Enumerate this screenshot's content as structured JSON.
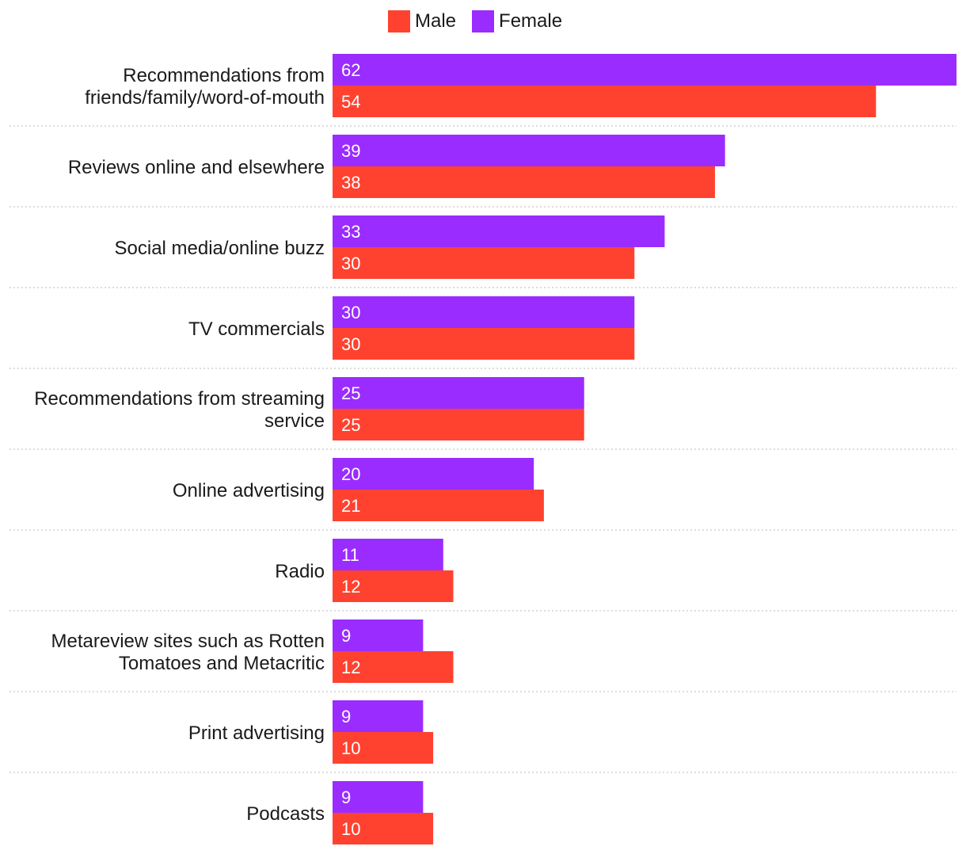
{
  "chart_data": {
    "type": "bar",
    "orientation": "horizontal",
    "categories": [
      [
        "Recommendations from",
        "friends/family/word-of-mouth"
      ],
      [
        "Reviews online and elsewhere"
      ],
      [
        "Social media/online buzz"
      ],
      [
        "TV commercials"
      ],
      [
        "Recommendations from streaming",
        "service"
      ],
      [
        "Online advertising"
      ],
      [
        "Radio"
      ],
      [
        "Metareview sites such as Rotten",
        "Tomatoes and Metacritic"
      ],
      [
        "Print advertising"
      ],
      [
        "Podcasts"
      ]
    ],
    "series": [
      {
        "name": "Female",
        "color": "#9b2cff",
        "values": [
          62,
          39,
          33,
          30,
          25,
          20,
          11,
          9,
          9,
          9
        ]
      },
      {
        "name": "Male",
        "color": "#ff4230",
        "values": [
          54,
          38,
          30,
          30,
          25,
          21,
          12,
          12,
          10,
          10
        ]
      }
    ],
    "xlim": [
      0,
      62
    ],
    "legend": {
      "position": "top-center",
      "items": [
        {
          "name": "Male",
          "color": "#ff4230"
        },
        {
          "name": "Female",
          "color": "#9b2cff"
        }
      ]
    },
    "separator_color": "#c8c8c8",
    "grid": false
  }
}
